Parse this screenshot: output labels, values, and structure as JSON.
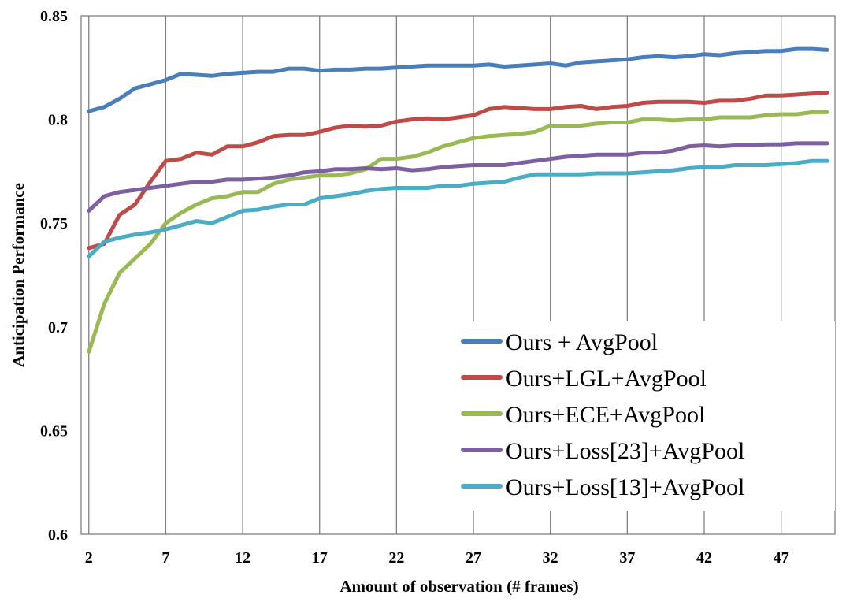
{
  "chart_data": {
    "type": "line",
    "xlabel": "Amount of observation (# frames)",
    "ylabel": "Anticipation Performance",
    "x": [
      2,
      3,
      4,
      5,
      6,
      7,
      8,
      9,
      10,
      11,
      12,
      13,
      14,
      15,
      16,
      17,
      18,
      19,
      20,
      21,
      22,
      23,
      24,
      25,
      26,
      27,
      28,
      29,
      30,
      31,
      32,
      33,
      34,
      35,
      36,
      37,
      38,
      39,
      40,
      41,
      42,
      43,
      44,
      45,
      46,
      47,
      48,
      49,
      50
    ],
    "xlim": [
      1.5,
      50.5
    ],
    "ylim": [
      0.6,
      0.85
    ],
    "x_ticks": [
      "2",
      "7",
      "12",
      "17",
      "22",
      "27",
      "32",
      "37",
      "42",
      "47"
    ],
    "y_ticks": [
      "0.6",
      "0.65",
      "0.7",
      "0.75",
      "0.8",
      "0.85"
    ],
    "grid": "vertical",
    "legend_position": "bottom-right",
    "series": [
      {
        "name": "Ours + AvgPool",
        "color": "#4a7ebb",
        "values": [
          0.804,
          0.806,
          0.81,
          0.815,
          0.817,
          0.819,
          0.822,
          0.8215,
          0.821,
          0.822,
          0.8225,
          0.823,
          0.823,
          0.8245,
          0.8245,
          0.8235,
          0.824,
          0.824,
          0.8245,
          0.8245,
          0.825,
          0.8255,
          0.826,
          0.826,
          0.826,
          0.826,
          0.8265,
          0.8255,
          0.826,
          0.8265,
          0.827,
          0.826,
          0.8275,
          0.828,
          0.8285,
          0.829,
          0.83,
          0.8305,
          0.83,
          0.8305,
          0.8315,
          0.831,
          0.832,
          0.8325,
          0.833,
          0.833,
          0.834,
          0.834,
          0.8335
        ]
      },
      {
        "name": "Ours+LGL+AvgPool",
        "color": "#be4b48",
        "values": [
          0.738,
          0.74,
          0.754,
          0.759,
          0.77,
          0.78,
          0.781,
          0.784,
          0.783,
          0.787,
          0.787,
          0.789,
          0.792,
          0.7925,
          0.7925,
          0.794,
          0.796,
          0.797,
          0.7965,
          0.797,
          0.799,
          0.8,
          0.8005,
          0.8,
          0.801,
          0.802,
          0.805,
          0.806,
          0.8055,
          0.805,
          0.805,
          0.806,
          0.8065,
          0.805,
          0.806,
          0.8065,
          0.808,
          0.8085,
          0.8085,
          0.8085,
          0.808,
          0.809,
          0.809,
          0.81,
          0.8115,
          0.8115,
          0.812,
          0.8125,
          0.813
        ]
      },
      {
        "name": "Ours+ECE+AvgPool",
        "color": "#98b954",
        "values": [
          0.688,
          0.711,
          0.726,
          0.733,
          0.74,
          0.75,
          0.755,
          0.759,
          0.762,
          0.763,
          0.765,
          0.765,
          0.769,
          0.771,
          0.772,
          0.773,
          0.773,
          0.774,
          0.776,
          0.781,
          0.781,
          0.782,
          0.784,
          0.787,
          0.789,
          0.791,
          0.792,
          0.7925,
          0.793,
          0.794,
          0.797,
          0.797,
          0.797,
          0.798,
          0.7985,
          0.7985,
          0.8,
          0.8,
          0.7995,
          0.8,
          0.8,
          0.801,
          0.801,
          0.801,
          0.802,
          0.8025,
          0.8025,
          0.8035,
          0.8035
        ]
      },
      {
        "name": "Ours+Loss[23]+AvgPool",
        "color": "#7d60a0",
        "values": [
          0.756,
          0.763,
          0.765,
          0.766,
          0.767,
          0.768,
          0.769,
          0.77,
          0.77,
          0.771,
          0.771,
          0.7715,
          0.772,
          0.773,
          0.7745,
          0.775,
          0.776,
          0.776,
          0.7765,
          0.776,
          0.7765,
          0.7755,
          0.776,
          0.777,
          0.7775,
          0.778,
          0.778,
          0.778,
          0.779,
          0.78,
          0.781,
          0.782,
          0.7825,
          0.783,
          0.783,
          0.783,
          0.784,
          0.784,
          0.785,
          0.787,
          0.7875,
          0.787,
          0.7875,
          0.7875,
          0.788,
          0.788,
          0.7885,
          0.7885,
          0.7885
        ]
      },
      {
        "name": "Ours+Loss[13]+AvgPool",
        "color": "#4bacc6",
        "values": [
          0.734,
          0.741,
          0.743,
          0.7445,
          0.7455,
          0.747,
          0.749,
          0.751,
          0.75,
          0.753,
          0.756,
          0.7565,
          0.758,
          0.759,
          0.759,
          0.762,
          0.763,
          0.764,
          0.7655,
          0.7665,
          0.767,
          0.767,
          0.767,
          0.768,
          0.768,
          0.769,
          0.7695,
          0.77,
          0.772,
          0.7735,
          0.7735,
          0.7735,
          0.7735,
          0.774,
          0.774,
          0.774,
          0.7745,
          0.775,
          0.7755,
          0.7765,
          0.777,
          0.777,
          0.778,
          0.778,
          0.778,
          0.7785,
          0.779,
          0.78,
          0.78
        ]
      }
    ]
  }
}
